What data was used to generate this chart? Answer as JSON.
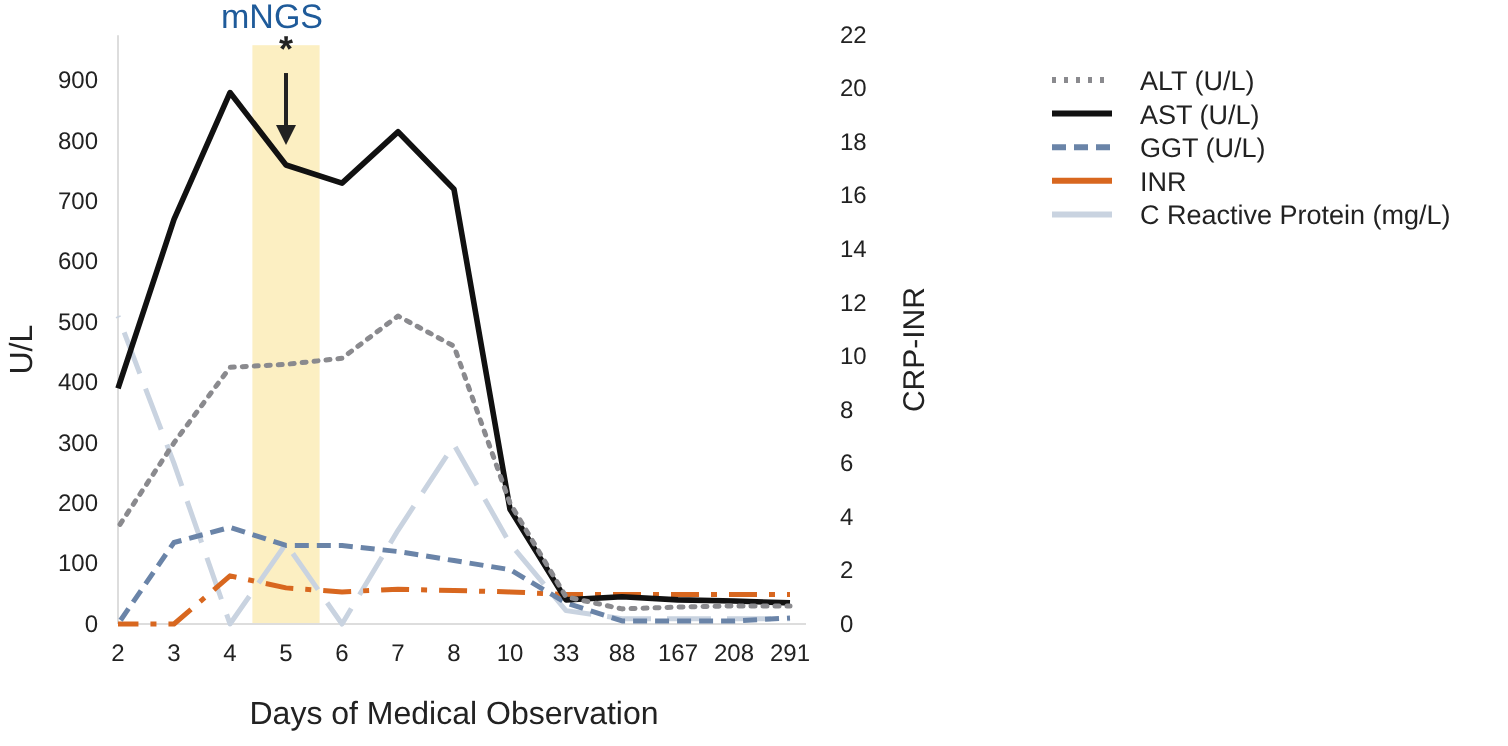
{
  "chart_data": {
    "type": "line",
    "xlabel": "Days of Medical Observation",
    "ylabel": "U/L",
    "y2label": "CRP-INR",
    "categories": [
      "2",
      "3",
      "4",
      "5",
      "6",
      "7",
      "8",
      "10",
      "33",
      "88",
      "167",
      "208",
      "291"
    ],
    "ylim": [
      0,
      975
    ],
    "yticks": [
      0,
      100,
      200,
      300,
      400,
      500,
      600,
      700,
      800,
      900
    ],
    "y2lim": [
      0,
      22
    ],
    "y2ticks": [
      0,
      2,
      4,
      6,
      8,
      10,
      12,
      14,
      16,
      18,
      20,
      22
    ],
    "series": [
      {
        "name": "ALT (U/L)",
        "color": "#8a8a8e",
        "line_style": "dotted",
        "values": [
          160,
          300,
          425,
          430,
          440,
          510,
          460,
          200,
          45,
          25,
          28,
          30,
          30
        ]
      },
      {
        "name": "AST (U/L)",
        "color": "#111111",
        "line_style": "solid",
        "values": [
          390,
          670,
          880,
          760,
          730,
          815,
          720,
          190,
          40,
          45,
          40,
          38,
          35
        ]
      },
      {
        "name": "GGT (U/L)",
        "color": "#6a84a8",
        "line_style": "dashed",
        "values": [
          0,
          135,
          160,
          130,
          130,
          120,
          105,
          90,
          35,
          5,
          5,
          5,
          10
        ]
      },
      {
        "name": "INR",
        "color": "#d8671f",
        "line_style": "dashdot",
        "axis": "y2",
        "values": [
          0,
          0,
          1.8,
          1.35,
          1.2,
          1.3,
          1.25,
          1.2,
          1.1,
          1.1,
          1.1,
          1.1,
          1.1
        ]
      },
      {
        "name": "C Reactive Protein (mg/L)",
        "color": "#c9d3e0",
        "line_style": "longdash",
        "axis": "y2",
        "values": [
          11.5,
          6,
          0,
          3,
          0,
          3.5,
          6.7,
          3,
          0.5,
          0.2,
          0.2,
          0.2,
          0.2
        ]
      }
    ],
    "bands": [
      {
        "axis": "x",
        "from": "5",
        "to": "5",
        "label": "mNGS",
        "color": "#fcefc2"
      }
    ],
    "annotations": [
      {
        "text": "*",
        "x": "5",
        "y": 760
      }
    ],
    "legend": "right"
  }
}
